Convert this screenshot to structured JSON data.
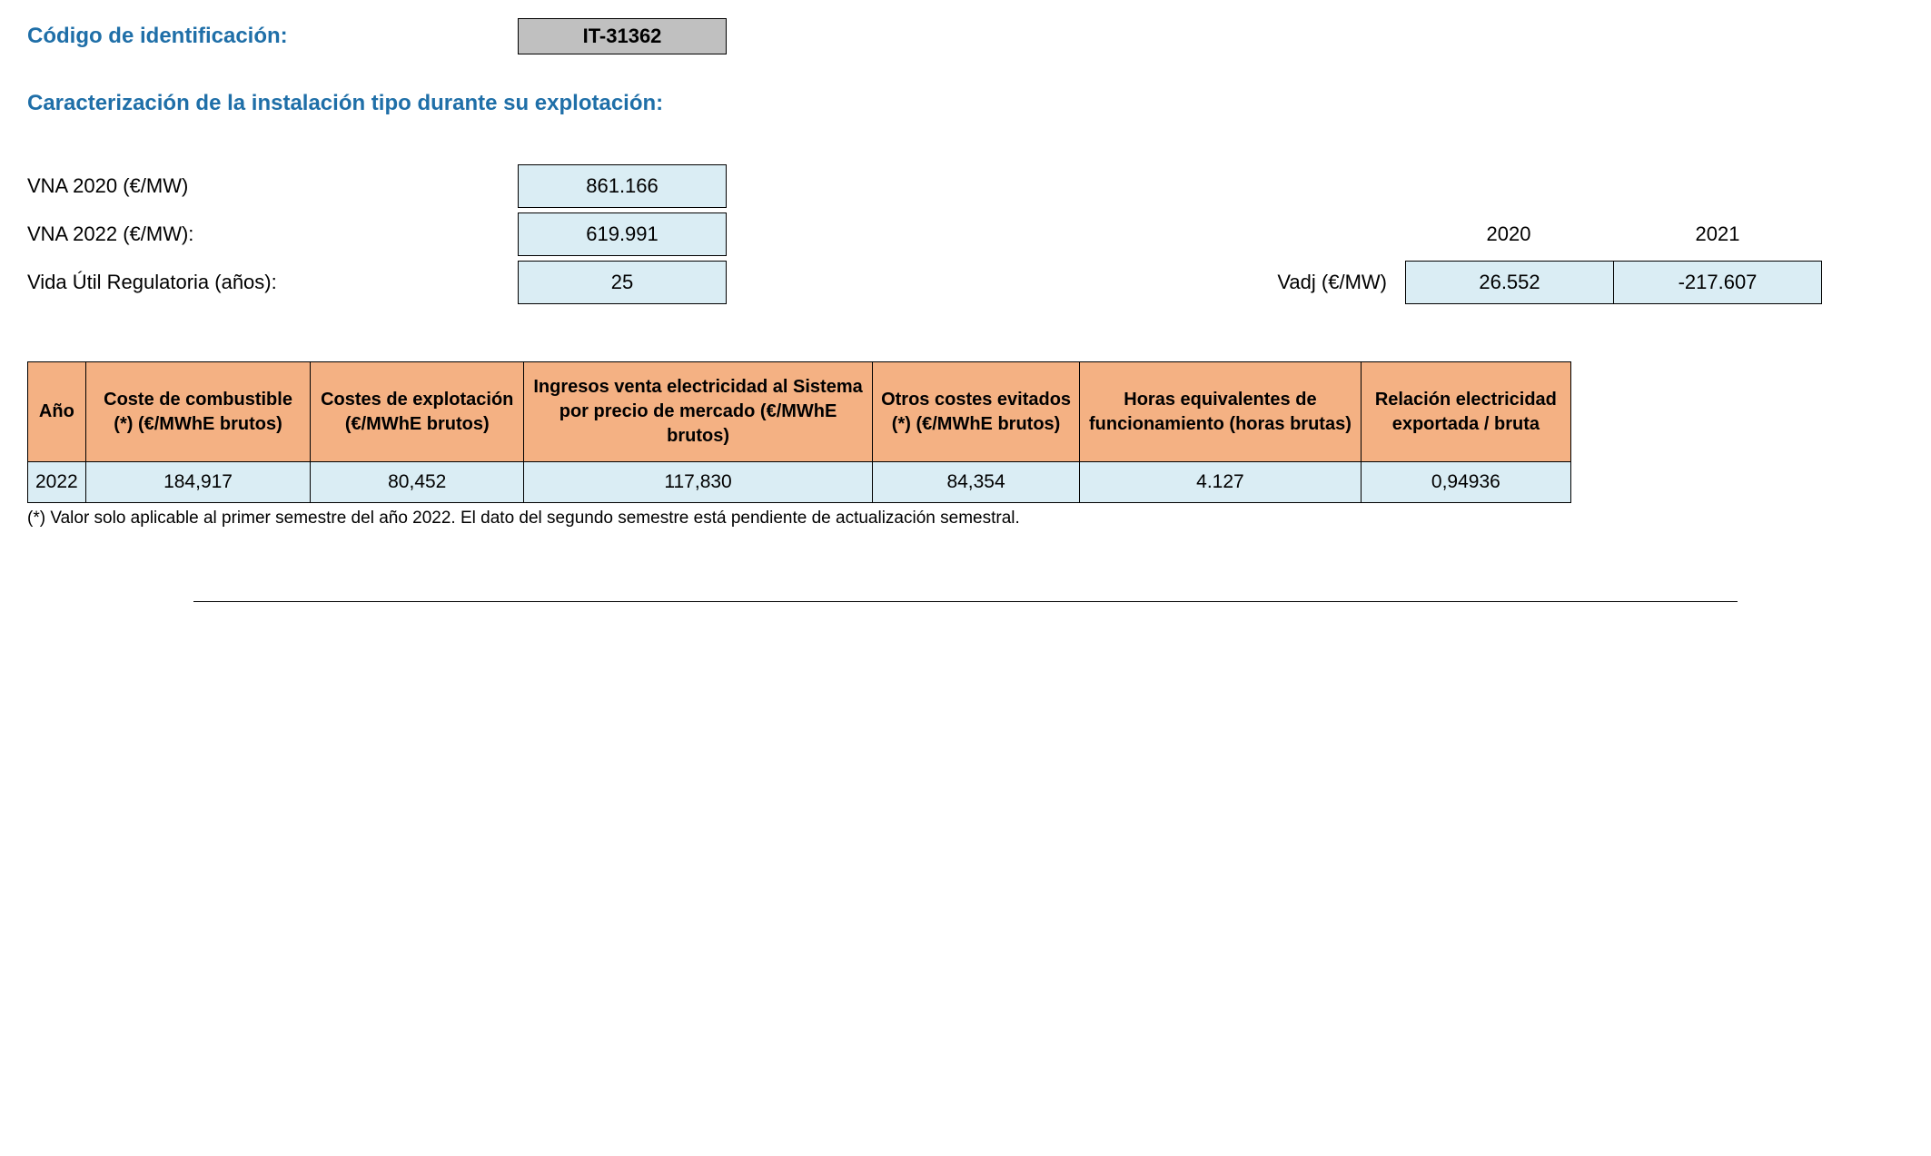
{
  "header": {
    "label": "Código de identificación:",
    "code": "IT-31362"
  },
  "section_title": "Caracterización de la instalación tipo durante su explotación:",
  "params": {
    "vna2020": {
      "label": "VNA 2020 (€/MW)",
      "value": "861.166"
    },
    "vna2022": {
      "label": "VNA 2022 (€/MW):",
      "value": "619.991"
    },
    "vida_util": {
      "label": "Vida Útil Regulatoria (años):",
      "value": "25"
    }
  },
  "vadj": {
    "label": "Vadj (€/MW)",
    "years": [
      "2020",
      "2021"
    ],
    "values": [
      "26.552",
      "-217.607"
    ]
  },
  "main_table": {
    "columns": [
      "Año",
      "Coste de combustible (*) (€/MWhE brutos)",
      "Costes de explotación (€/MWhE brutos)",
      "Ingresos venta electricidad al Sistema por precio de mercado (€/MWhE brutos)",
      "Otros costes evitados (*) (€/MWhE brutos)",
      "Horas equivalentes de funcionamiento (horas brutas)",
      "Relación electricidad exportada / bruta"
    ],
    "rows": [
      [
        "2022",
        "184,917",
        "80,452",
        "117,830",
        "84,354",
        "4.127",
        "0,94936"
      ]
    ],
    "header_bg": "#f4b183",
    "row_bg": "#daedf4",
    "border_color": "#000000"
  },
  "footnote": "(*) Valor solo aplicable al primer semestre del año 2022. El dato del segundo semestre está pendiente de actualización semestral.",
  "colors": {
    "heading": "#1f6fa8",
    "code_box_bg": "#c0c0c0",
    "value_box_bg": "#daedf4",
    "table_header_bg": "#f4b183",
    "background": "#ffffff"
  }
}
